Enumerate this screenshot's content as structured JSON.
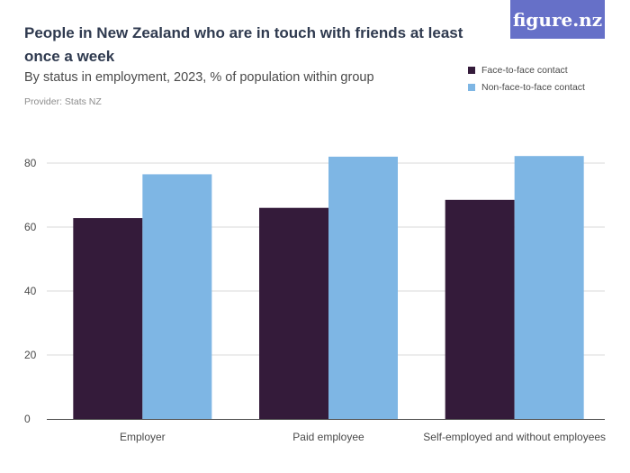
{
  "header": {
    "title": "People in New Zealand who are in touch with friends at least once a week",
    "subtitle": "By status in employment, 2023, % of population within group",
    "provider": "Provider: Stats NZ",
    "logo_text": "figure.nz"
  },
  "colors": {
    "face_to_face": "#341b3a",
    "non_face_to_face": "#7eb6e4",
    "grid": "#d9d9d9",
    "logo_bg": "#6670c8"
  },
  "chart_data": {
    "type": "bar",
    "title": "People in New Zealand who are in touch with friends at least once a week",
    "subtitle": "By status in employment, 2023, % of population within group",
    "xlabel": "",
    "ylabel": "",
    "categories": [
      "Employer",
      "Paid employee",
      "Self-employed and without employees"
    ],
    "series": [
      {
        "name": "Face-to-face contact",
        "values": [
          62.8,
          66.0,
          68.5
        ]
      },
      {
        "name": "Non-face-to-face contact",
        "values": [
          76.5,
          82.0,
          82.2
        ]
      }
    ],
    "ylim": [
      0,
      80
    ],
    "yticks": [
      0,
      20,
      40,
      60,
      80
    ],
    "grid": true,
    "legend_position": "top-right"
  }
}
